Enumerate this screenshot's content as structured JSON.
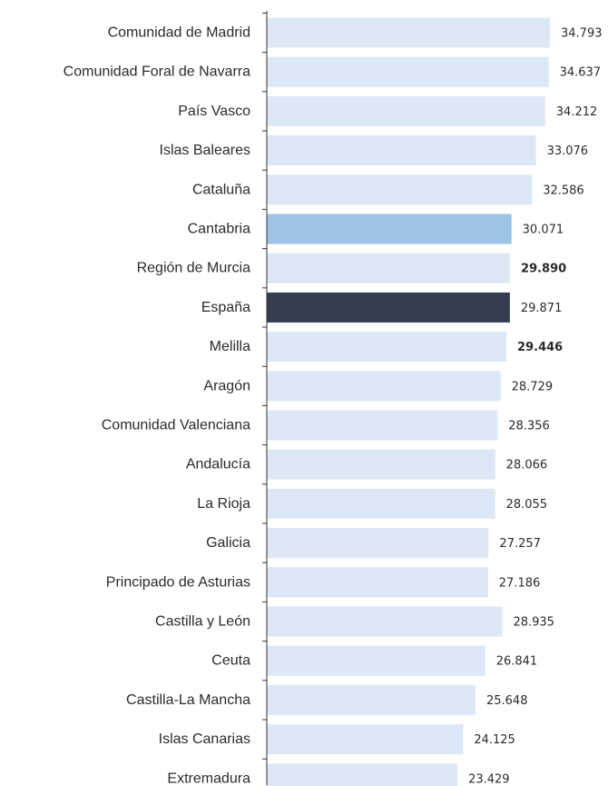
{
  "chart_data": {
    "type": "bar",
    "orientation": "horizontal",
    "title": "",
    "xlabel": "",
    "ylabel": "",
    "xlim": [
      0,
      34.793
    ],
    "grid": false,
    "legend": "none",
    "categories": [
      "Comunidad de Madrid",
      "Comunidad Foral de Navarra",
      "País Vasco",
      "Islas Baleares",
      "Cataluña",
      "Cantabria",
      "Región de Murcia",
      "España",
      "Melilla",
      "Aragón",
      "Comunidad Valenciana",
      "Andalucía",
      "La Rioja",
      "Galicia",
      "Principado de Asturias",
      "Castilla y León",
      "Ceuta",
      "Castilla-La Mancha",
      "Islas Canarias",
      "Extremadura"
    ],
    "values": [
      34.793,
      34.637,
      34.212,
      33.076,
      32.586,
      30.071,
      29.89,
      29.871,
      29.446,
      28.729,
      28.356,
      28.066,
      28.055,
      27.257,
      27.186,
      28.935,
      26.841,
      25.648,
      24.125,
      23.429
    ],
    "value_labels": [
      "34.793",
      "34.637",
      "34.212",
      "33.076",
      "32.586",
      "30.071",
      "29.890",
      "29.871",
      "29.446",
      "28.729",
      "28.356",
      "28.066",
      "28.055",
      "27.257",
      "27.186",
      "28.935",
      "26.841",
      "25.648",
      "24.125",
      "23.429"
    ],
    "bold_value_labels": [
      "Región de Murcia",
      "Melilla"
    ],
    "colors": {
      "default": "#dce8f5",
      "highlight": "#9dc3e6",
      "national": "#333f50",
      "axis": "#333333",
      "text": "#2b2b2b"
    },
    "highlight_category": "Cantabria",
    "national_category": "España"
  }
}
